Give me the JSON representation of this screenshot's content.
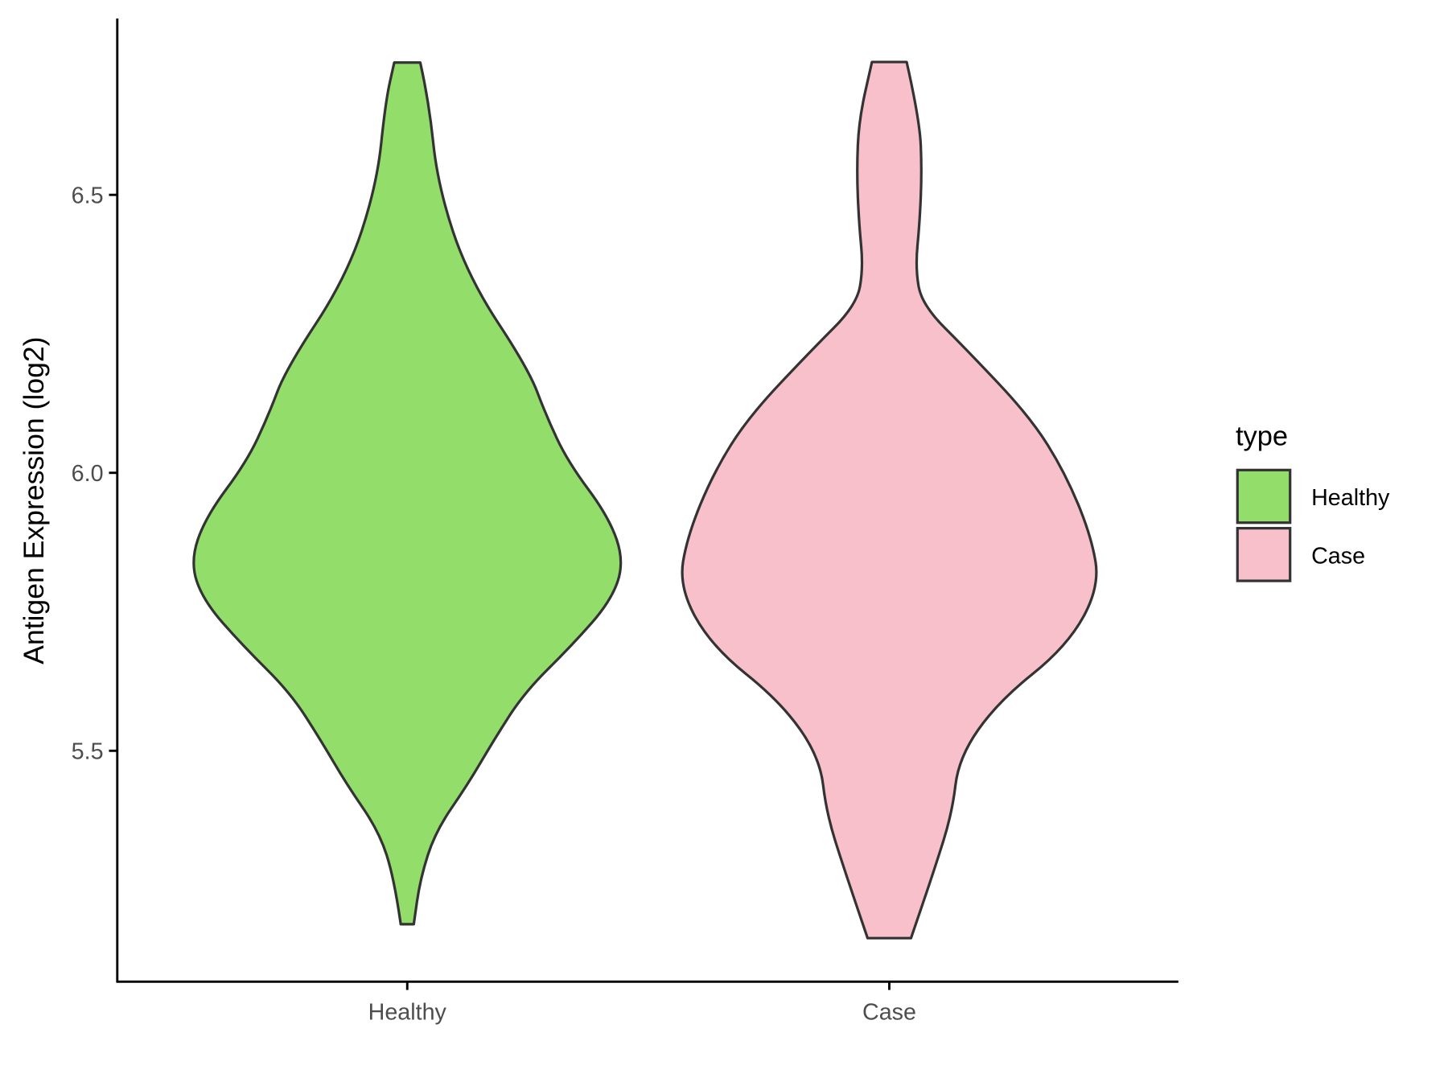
{
  "chart_data": {
    "type": "violin",
    "title": "",
    "xlabel": "",
    "ylabel": "Antigen Expression (log2)",
    "ylim": [
      5.08,
      6.83
    ],
    "yticks": [
      5.5,
      6.0,
      6.5
    ],
    "ytick_labels": [
      "5.5",
      "6.0",
      "6.5"
    ],
    "categories": [
      "Healthy",
      "Case"
    ],
    "grid": false,
    "legend": {
      "title": "type",
      "position": "right",
      "entries": [
        "Healthy",
        "Case"
      ]
    },
    "stroke_color": "#333333",
    "series": [
      {
        "name": "Healthy",
        "color": "#93dd6a",
        "profile_y": [
          6.738,
          6.668,
          6.518,
          6.352,
          6.186,
          6.103,
          6.02,
          5.92,
          5.84,
          5.77,
          5.69,
          5.605,
          5.52,
          5.44,
          5.355,
          5.27,
          5.188
        ],
        "relative_density": [
          0.06,
          0.1,
          0.14,
          0.28,
          0.56,
          0.64,
          0.74,
          0.93,
          1.0,
          0.94,
          0.76,
          0.54,
          0.4,
          0.28,
          0.13,
          0.06,
          0.03
        ]
      },
      {
        "name": "Case",
        "color": "#f7c0cb",
        "profile_y": [
          6.739,
          6.635,
          6.543,
          6.45,
          6.369,
          6.302,
          6.22,
          6.1,
          6.0,
          5.887,
          5.795,
          5.688,
          5.588,
          5.488,
          5.389,
          5.289,
          5.163
        ],
        "relative_density": [
          0.08,
          0.14,
          0.15,
          0.14,
          0.12,
          0.15,
          0.36,
          0.65,
          0.81,
          0.93,
          0.97,
          0.82,
          0.5,
          0.32,
          0.29,
          0.21,
          0.1
        ]
      }
    ]
  }
}
